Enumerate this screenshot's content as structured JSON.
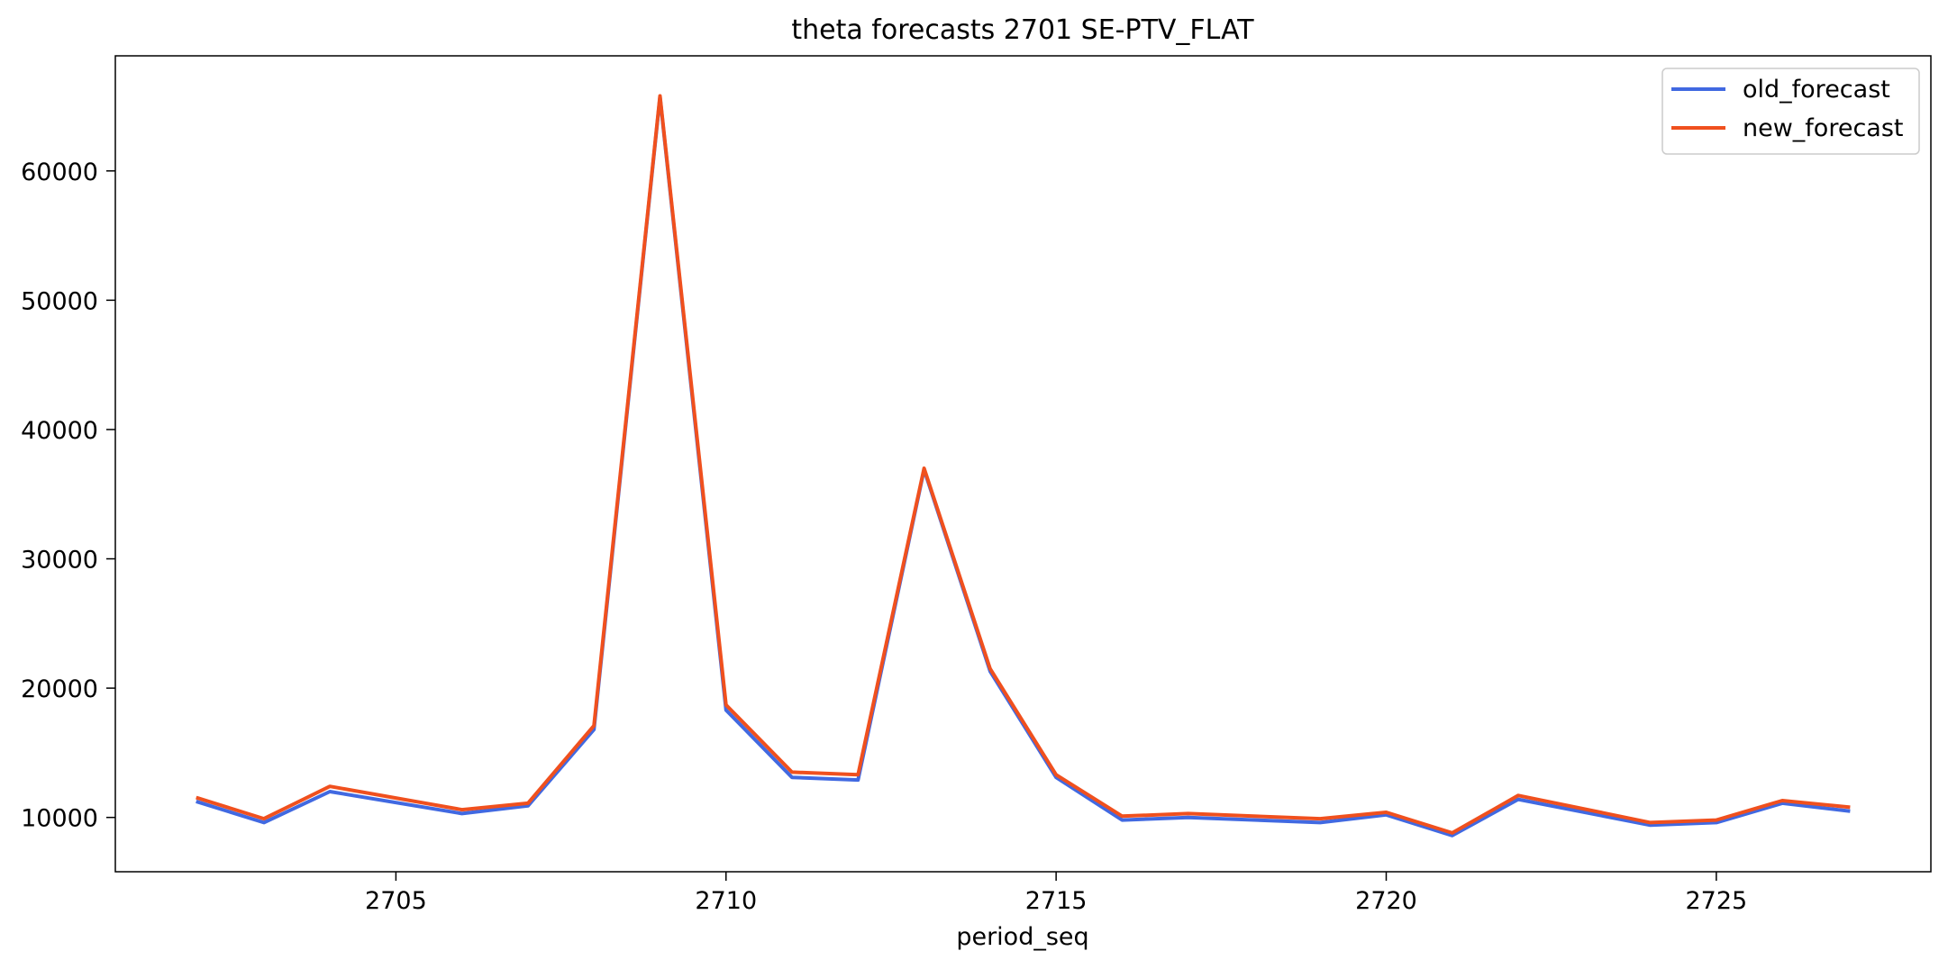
{
  "chart_data": {
    "type": "line",
    "title": "theta forecasts 2701 SE-PTV_FLAT",
    "xlabel": "period_seq",
    "ylabel": "",
    "xlim": [
      2700.75,
      2728.25
    ],
    "ylim": [
      5800,
      68900
    ],
    "xticks": [
      2705,
      2710,
      2715,
      2720,
      2725
    ],
    "xtick_labels": [
      "2705",
      "2710",
      "2715",
      "2720",
      "2725"
    ],
    "yticks": [
      10000,
      20000,
      30000,
      40000,
      50000,
      60000
    ],
    "ytick_labels": [
      "10000",
      "20000",
      "30000",
      "40000",
      "50000",
      "60000"
    ],
    "grid": false,
    "legend_position": "top-right",
    "x": [
      2702,
      2703,
      2704,
      2706,
      2707,
      2708,
      2709,
      2710,
      2711,
      2712,
      2713,
      2714,
      2715,
      2716,
      2717,
      2719,
      2720,
      2721,
      2722,
      2724,
      2725,
      2726,
      2727
    ],
    "series": [
      {
        "name": "old_forecast",
        "color": "#4169e1",
        "values": [
          11200,
          9600,
          12000,
          10300,
          10900,
          16800,
          65700,
          18300,
          13100,
          12900,
          36900,
          21300,
          13100,
          9800,
          10000,
          9600,
          10200,
          8600,
          11400,
          9400,
          9600,
          11100,
          10500
        ]
      },
      {
        "name": "new_forecast",
        "color": "#f0501e",
        "values": [
          11500,
          9900,
          12400,
          10600,
          11100,
          17100,
          65800,
          18700,
          13500,
          13300,
          37000,
          21500,
          13300,
          10100,
          10300,
          9900,
          10400,
          8800,
          11700,
          9600,
          9800,
          11300,
          10800
        ]
      }
    ]
  }
}
